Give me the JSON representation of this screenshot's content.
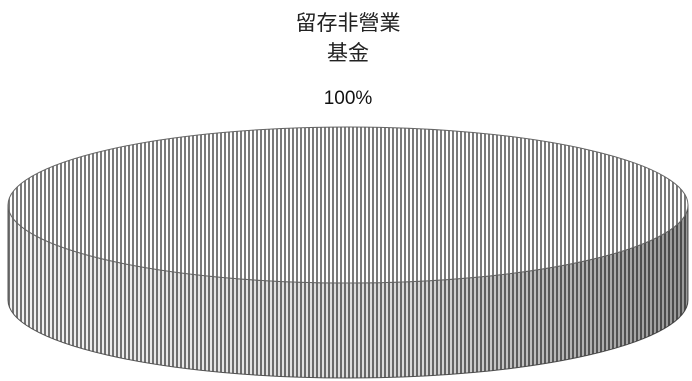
{
  "chart_data": {
    "type": "pie",
    "categories": [
      "留存非營業基金"
    ],
    "values": [
      100
    ],
    "value_labels": [
      "100%"
    ],
    "color": "#9a9a9a"
  }
}
